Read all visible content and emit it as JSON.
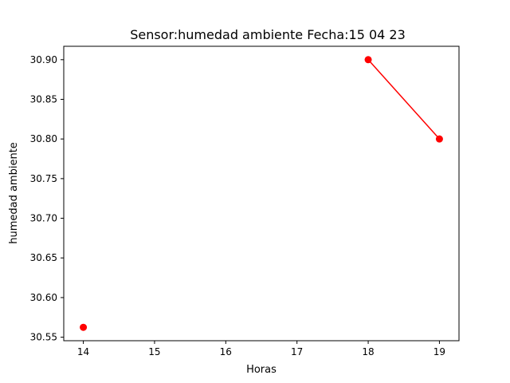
{
  "chart_data": {
    "type": "line",
    "title": "Sensor:humedad ambiente Fecha:15 04 23",
    "xlabel": "Horas",
    "ylabel": "humedad ambiente",
    "xlim": [
      13.725,
      19.275
    ],
    "ylim": [
      30.5456,
      30.9169
    ],
    "xticks": [
      14,
      15,
      16,
      17,
      18,
      19
    ],
    "xtick_labels": [
      "14",
      "15",
      "16",
      "17",
      "18",
      "19"
    ],
    "yticks": [
      30.55,
      30.6,
      30.65,
      30.7,
      30.75,
      30.8,
      30.85,
      30.9
    ],
    "ytick_labels": [
      "30.55",
      "30.60",
      "30.65",
      "30.70",
      "30.75",
      "30.80",
      "30.85",
      "30.90"
    ],
    "grid": false,
    "series": [
      {
        "color": "#ff0000",
        "marker": "circle",
        "segments": [
          [
            {
              "x": 14,
              "y": 30.5625
            }
          ],
          [
            {
              "x": 18,
              "y": 30.9
            },
            {
              "x": 19,
              "y": 30.8
            }
          ]
        ]
      }
    ]
  }
}
